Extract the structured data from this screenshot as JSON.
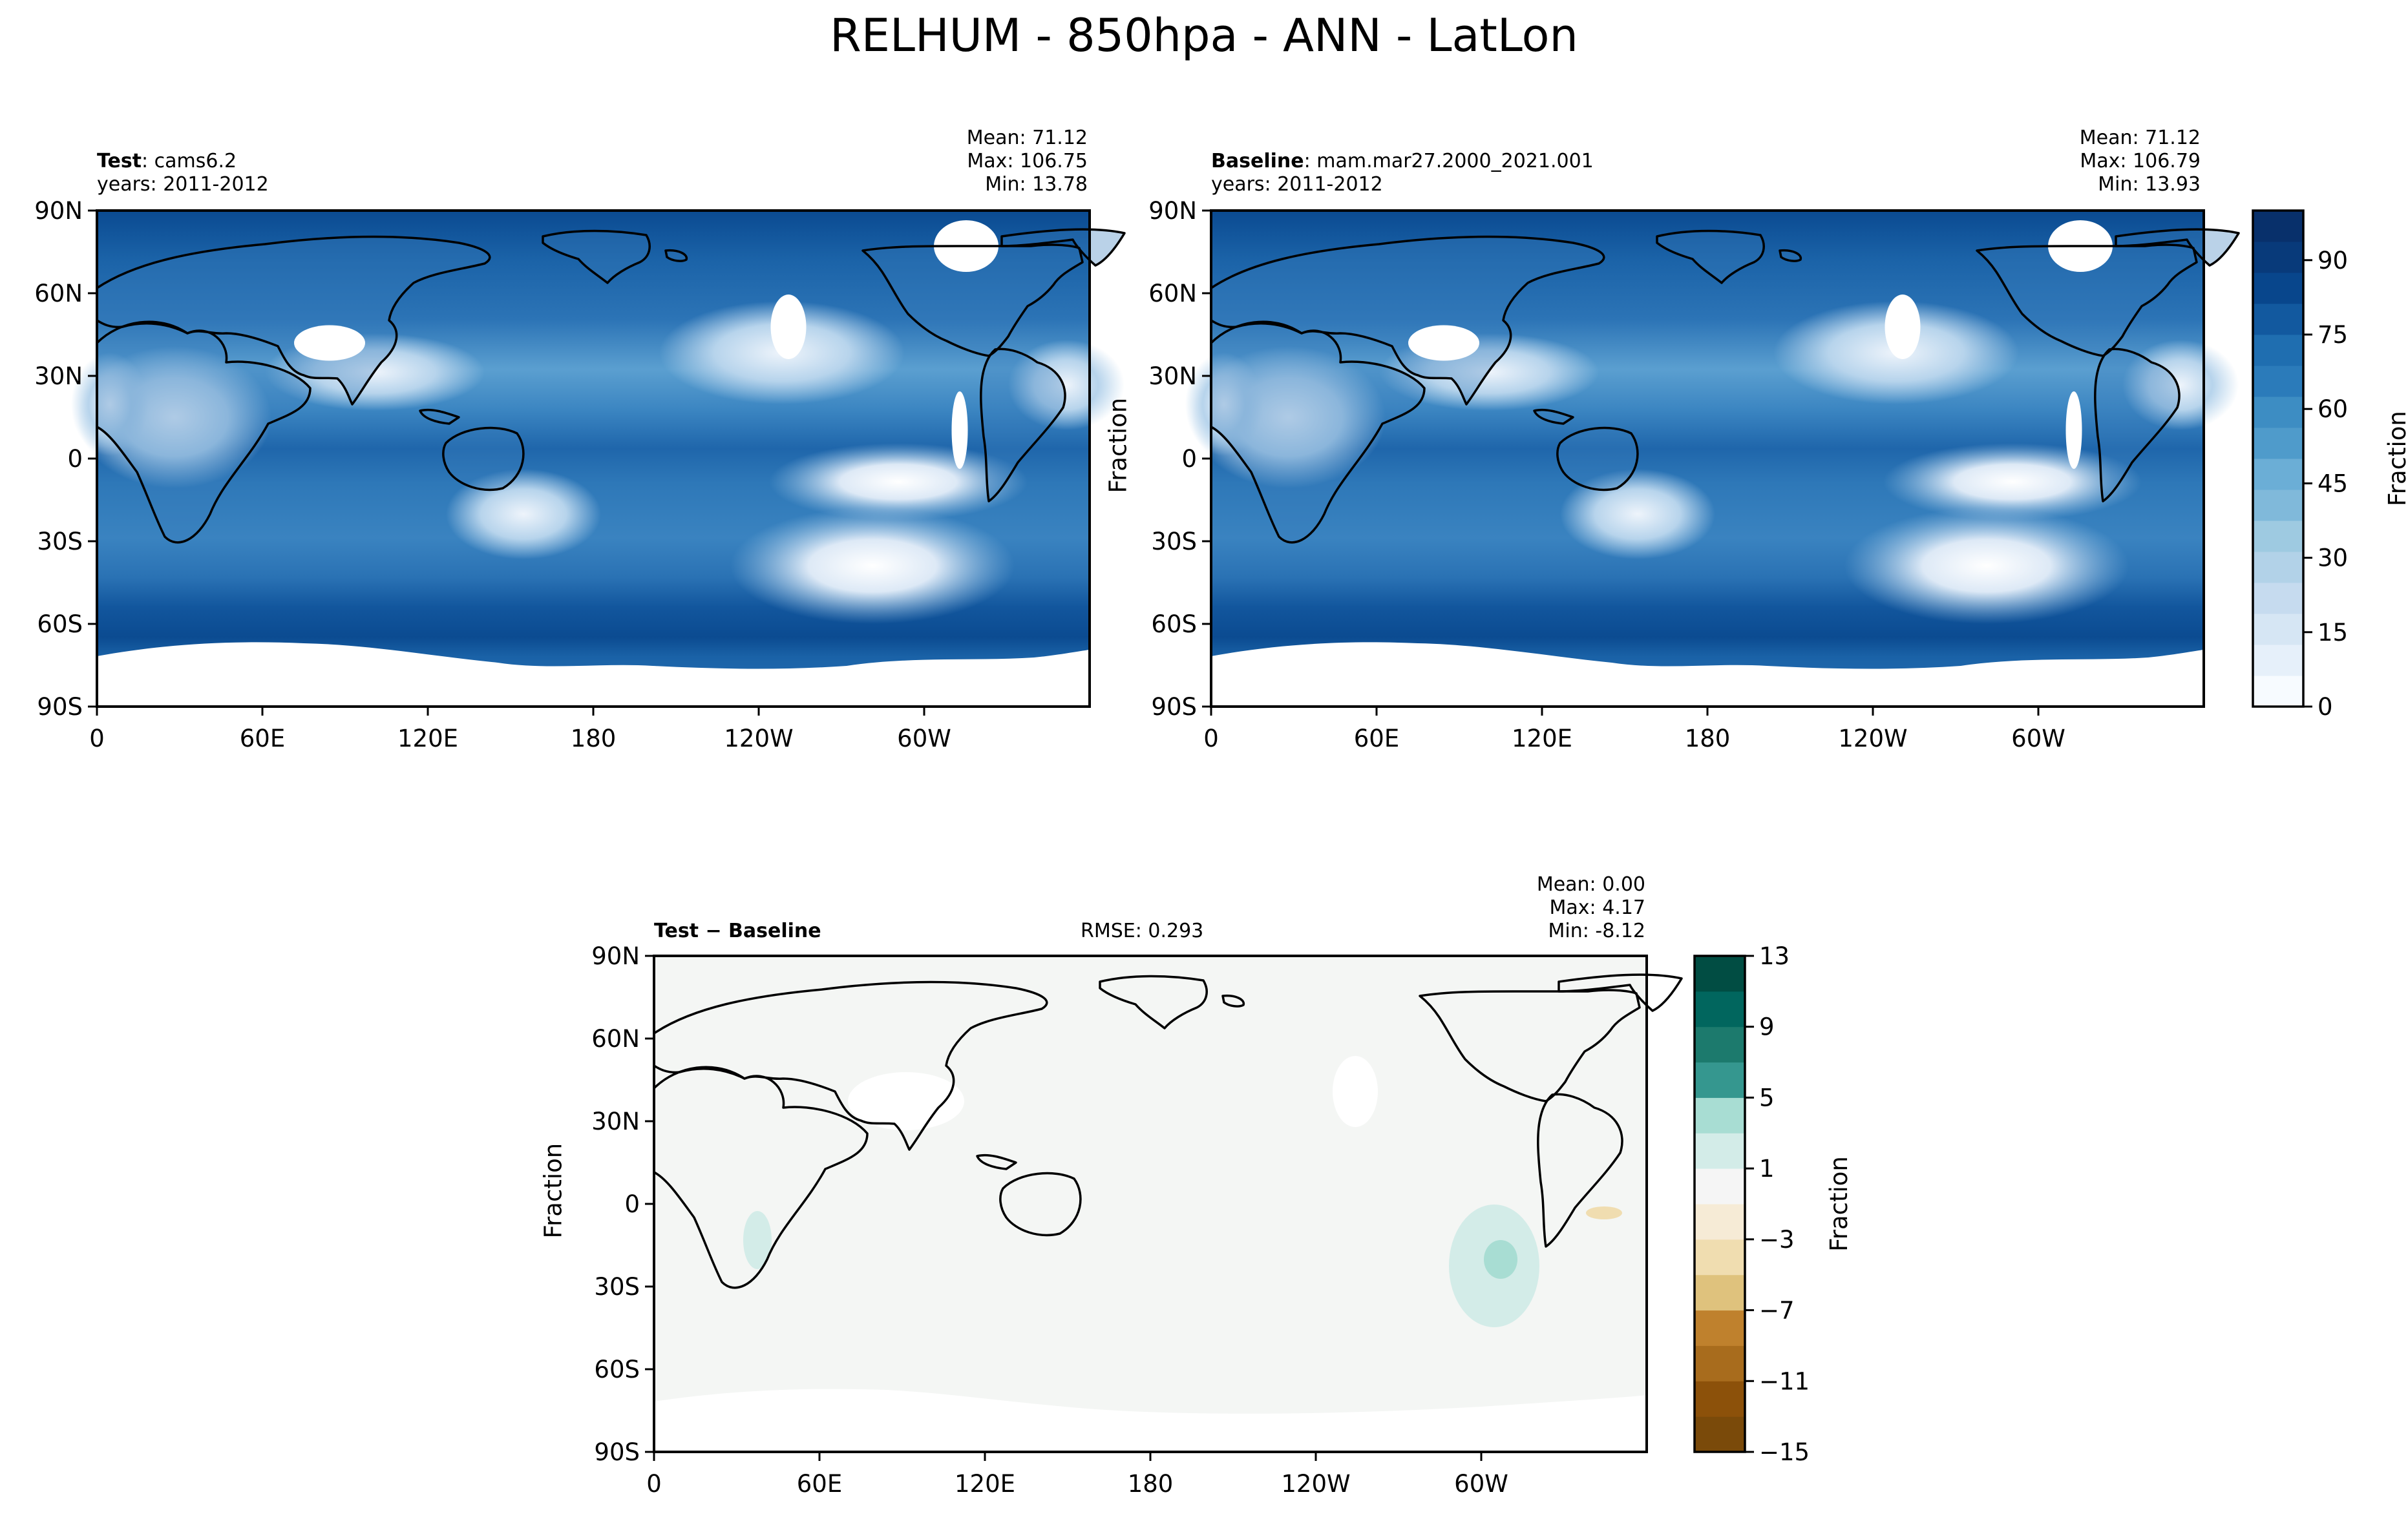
{
  "suptitle": "RELHUM - 850hpa - ANN - LatLon",
  "colors": {
    "ocean_main": "#2b6fb0",
    "land_edge": "#000000",
    "diff_background": "#f4f6f4",
    "blues_cmap": [
      "#f7fbff",
      "#e6f0fa",
      "#d6e6f4",
      "#c6dbef",
      "#b2d2e8",
      "#9ecae1",
      "#80b9da",
      "#6baed6",
      "#4f9bcb",
      "#3d8dc3",
      "#2b7bba",
      "#1f6eb0",
      "#12599f",
      "#08468c",
      "#083a7a",
      "#08306b"
    ],
    "diff_cmap": [
      "#7a4a0a",
      "#8c510a",
      "#a86c1d",
      "#bf812d",
      "#d4a65e",
      "#dfc27d",
      "#f0ddb0",
      "#f6ebd6",
      "#f5f5f5",
      "#d3ece8",
      "#a8ddd3",
      "#6cc0ae",
      "#35978f",
      "#1c7a6d",
      "#01665e",
      "#014d43"
    ]
  },
  "panels": {
    "test": {
      "title_bold": "Test",
      "title_rest": ": cams6.2",
      "years": "years: 2011-2012",
      "mean": "Mean: 71.12",
      "max": "Max: 106.75",
      "min": "Min: 13.78"
    },
    "baseline": {
      "title_bold": "Baseline",
      "title_rest": ": mam.mar27.2000_2021.001",
      "years": "years: 2011-2012",
      "mean": "Mean: 71.12",
      "max": "Max: 106.79",
      "min": "Min: 13.93",
      "ylabel": "Fraction"
    },
    "diff": {
      "title": "Test − Baseline",
      "rmse": "RMSE: 0.293",
      "mean": "Mean:  0.00",
      "max": "Max:  4.17",
      "min": "Min: -8.12",
      "ylabel": "Fraction"
    }
  },
  "chart_data": [
    {
      "type": "heatmap",
      "panel": "test",
      "title": "Test: cams6.2",
      "subtitle": "years: 2011-2012",
      "field": "RELHUM 850hpa annual mean",
      "stats": {
        "mean": 71.12,
        "max": 106.75,
        "min": 13.78
      },
      "x_ticklabels": [
        "0",
        "60E",
        "120E",
        "180",
        "120W",
        "60W"
      ],
      "x_tick_lons": [
        0,
        60,
        120,
        180,
        240,
        300
      ],
      "xlim": [
        0,
        360
      ],
      "y_ticklabels": [
        "90N",
        "60N",
        "30N",
        "0",
        "30S",
        "60S",
        "90S"
      ],
      "y_tick_lats": [
        90,
        60,
        30,
        0,
        -30,
        -60,
        -90
      ],
      "ylim": [
        -90,
        90
      ],
      "projection": "PlateCarree, central longitude 180"
    },
    {
      "type": "heatmap",
      "panel": "baseline",
      "title": "Baseline: mam.mar27.2000_2021.001",
      "subtitle": "years: 2011-2012",
      "field": "RELHUM 850hpa annual mean",
      "stats": {
        "mean": 71.12,
        "max": 106.79,
        "min": 13.93
      },
      "ylabel": "Fraction",
      "x_ticklabels": [
        "0",
        "60E",
        "120E",
        "180",
        "120W",
        "60W"
      ],
      "y_ticklabels": [
        "90N",
        "60N",
        "30N",
        "0",
        "30S",
        "60S",
        "90S"
      ],
      "colorbar": {
        "label": "Fraction",
        "levels": [
          0,
          6.25,
          12.5,
          18.75,
          25,
          31.25,
          37.5,
          43.75,
          50,
          56.25,
          62.5,
          68.75,
          75,
          81.25,
          87.5,
          93.75,
          100
        ],
        "tick_values": [
          0,
          15,
          30,
          45,
          60,
          75,
          90
        ],
        "tick_labels": [
          "0",
          "15",
          "30",
          "45",
          "60",
          "75",
          "90"
        ]
      }
    },
    {
      "type": "heatmap",
      "panel": "diff",
      "title": "Test − Baseline",
      "rmse": 0.293,
      "stats": {
        "mean": 0.0,
        "max": 4.17,
        "min": -8.12
      },
      "ylabel": "Fraction",
      "x_ticklabels": [
        "0",
        "60E",
        "120E",
        "180",
        "120W",
        "60W"
      ],
      "y_ticklabels": [
        "90N",
        "60N",
        "30N",
        "0",
        "30S",
        "60S",
        "90S"
      ],
      "colorbar": {
        "label": "Fraction",
        "levels": [
          -15,
          -13,
          -11,
          -9,
          -7,
          -5,
          -3,
          -1,
          1,
          3,
          5,
          7,
          9,
          11,
          13
        ],
        "tick_values": [
          -15,
          -11,
          -7,
          -3,
          1,
          5,
          9,
          13
        ],
        "tick_labels": [
          "−15",
          "−11",
          "−7",
          "−3",
          "1",
          "5",
          "9",
          "13"
        ]
      }
    }
  ]
}
